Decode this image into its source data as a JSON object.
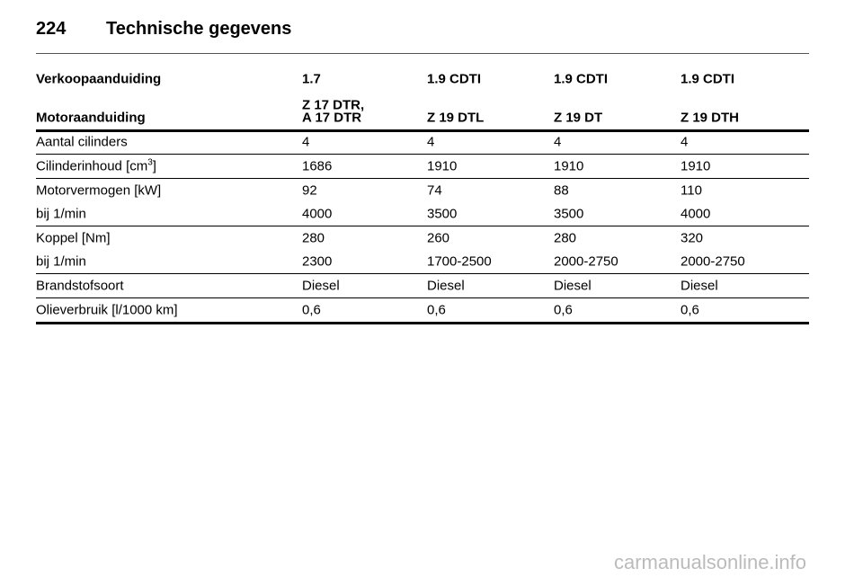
{
  "header": {
    "page_number": "224",
    "title": "Technische gegevens"
  },
  "table": {
    "header": [
      [
        "Verkoopaanduiding",
        "1.7",
        "1.9 CDTI",
        "1.9 CDTI",
        "1.9 CDTI"
      ],
      [
        "Motoraanduiding",
        [
          "Z 17 DTR,",
          "A 17 DTR"
        ],
        "Z 19 DTL",
        "Z 19 DT",
        "Z 19 DTH"
      ]
    ],
    "groups": [
      [
        [
          "Aantal cilinders",
          "4",
          "4",
          "4",
          "4"
        ]
      ],
      [
        [
          {
            "text": "Cilinderinhoud [cm",
            "sup": "3",
            "end": "]"
          },
          "1686",
          "1910",
          "1910",
          "1910"
        ]
      ],
      [
        [
          "Motorvermogen [kW]",
          "92",
          "74",
          "88",
          "110"
        ],
        [
          "bij 1/min",
          "4000",
          "3500",
          "3500",
          "4000"
        ]
      ],
      [
        [
          "Koppel [Nm]",
          "280",
          "260",
          "280",
          "320"
        ],
        [
          "bij 1/min",
          "2300",
          "1700-2500",
          "2000-2750",
          "2000-2750"
        ]
      ],
      [
        [
          "Brandstofsoort",
          "Diesel",
          "Diesel",
          "Diesel",
          "Diesel"
        ]
      ],
      [
        [
          "Olieverbruik [l/1000 km]",
          "0,6",
          "0,6",
          "0,6",
          "0,6"
        ]
      ]
    ]
  },
  "watermark": "carmanualsonline.info"
}
